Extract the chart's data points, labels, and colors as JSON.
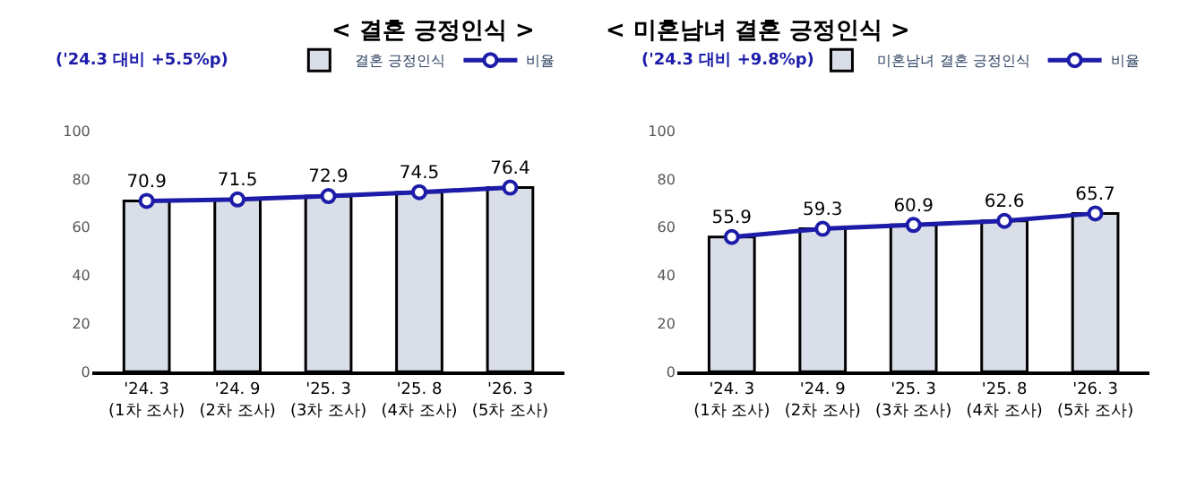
{
  "chart_data": [
    {
      "type": "bar",
      "title": "< 결혼 긍정인식 >",
      "categories": [
        "'24. 3\n(1차 조사)",
        "'24. 9\n(2차 조사)",
        "'25. 3\n(3차 조사)",
        "'25. 8\n(4차 조사)",
        "'26. 3\n(5차 조사)"
      ],
      "series": [
        {
          "name": "결혼 긍정인식",
          "color": "#d9dee8",
          "values": [
            70.9,
            71.5,
            72.9,
            74.5,
            76.4
          ]
        },
        {
          "name": "비율",
          "type": "line",
          "color": "#1c1ca8",
          "values": [
            70.9,
            71.5,
            72.9,
            74.5,
            76.4
          ],
          "data_labels": true
        }
      ],
      "ylim": [
        0,
        100
      ],
      "yticks": [
        0,
        20,
        40,
        60,
        80,
        100
      ],
      "grid": false,
      "legend": "top right",
      "marker": "circle",
      "annotations": [
        "('24.3 대비 +5.5%p)"
      ]
    },
    {
      "type": "bar",
      "title": "< 미혼남녀 결혼 긍정인식 >",
      "categories": [
        "'24. 3\n(1차 조사)",
        "'24. 9\n(2차 조사)",
        "'25. 3\n(3차 조사)",
        "'25. 8\n(4차 조사)",
        "'26. 3\n(5차 조사)"
      ],
      "series": [
        {
          "name": "미혼남녀 결혼 긍정인식",
          "color": "#d9dee8",
          "values": [
            55.9,
            59.3,
            60.9,
            62.6,
            65.7
          ]
        },
        {
          "name": "비율",
          "type": "line",
          "color": "#1c1ca8",
          "values": [
            55.9,
            59.3,
            60.9,
            62.6,
            65.7
          ],
          "data_labels": true
        }
      ],
      "ylim": [
        0,
        100
      ],
      "yticks": [
        0,
        20,
        40,
        60,
        80,
        100
      ],
      "grid": false,
      "legend": "top right",
      "marker": "circle",
      "annotations": [
        "('24.3 대비 +9.8%p)"
      ]
    }
  ]
}
